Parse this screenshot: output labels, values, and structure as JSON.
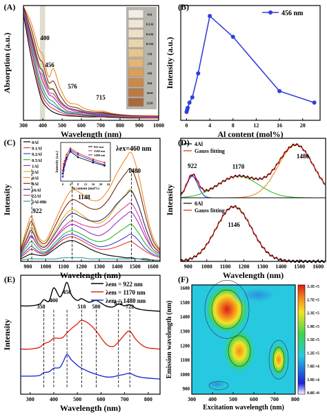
{
  "panels": {
    "a": {
      "letter": "(A)",
      "ylabel": "Absorption (a.u.)",
      "xlabel": "Wavelength (nm)",
      "xticks": [
        "300",
        "400",
        "500",
        "600",
        "700",
        "800",
        "900",
        "1000"
      ],
      "peaks": [
        "400",
        "456",
        "576",
        "715"
      ],
      "swatches": [
        "0Al",
        "0.1Al",
        "0.2Al",
        "0.5Al",
        "1Al",
        "2Al",
        "4Al",
        "8Al",
        "16Al",
        "22Al"
      ]
    },
    "b": {
      "letter": "(B)",
      "ylabel": "Intensity (a.u.)",
      "xlabel": "Al content (mol%)",
      "xticks": [
        "0",
        "4",
        "8",
        "12",
        "16",
        "20"
      ],
      "legend": "456 nm"
    },
    "c": {
      "letter": "(C)",
      "ylabel": "Intensity",
      "xlabel": "Wavelength (nm)",
      "xticks": [
        "900",
        "1000",
        "1100",
        "1200",
        "1300",
        "1400",
        "1500",
        "1600"
      ],
      "legend": [
        "0Al",
        "0.1Al",
        "0.2Al",
        "0.5Al",
        "1Al",
        "2Al",
        "4Al",
        "8Al",
        "16Al",
        "22Al",
        "2Al-0Bi"
      ],
      "excitation": "λex=460 nm",
      "peaks": [
        "922",
        "1148",
        "1480"
      ],
      "inset": {
        "ylabel": "Intensity (a.u.)",
        "xlabel": "Al content (mol%)",
        "xticks": [
          "0",
          "4",
          "8",
          "12",
          "16",
          "20",
          "24"
        ],
        "legend": [
          "922 nm",
          "1148 nm",
          "1480 nm"
        ]
      }
    },
    "d": {
      "letter": "(D)",
      "ylabel": "Intensity",
      "xlabel": "Wavelength (nm)",
      "xticks": [
        "900",
        "1000",
        "1100",
        "1200",
        "1300",
        "1400",
        "1500",
        "1600"
      ],
      "top_legend": [
        "4Al",
        "Gauss fitting"
      ],
      "bottom_legend": [
        "0Al",
        "Gauss fitting"
      ],
      "top_peaks": [
        "922",
        "1170",
        "1480"
      ],
      "bottom_peak": "1146"
    },
    "e": {
      "letter": "(E)",
      "ylabel": "Intensity",
      "xlabel": "Wavelength (nm)",
      "xticks": [
        "300",
        "400",
        "500",
        "600",
        "700",
        "800"
      ],
      "legend": [
        "λem = 922 nm",
        "λem = 1170 nm",
        "λem = 1480 nm"
      ],
      "peaks": [
        "358",
        "400",
        "456",
        "518",
        "580",
        "674",
        "722"
      ]
    },
    "f": {
      "letter": "(F)",
      "ylabel": "Emission wavelength (nm)",
      "xlabel": "Excitation wavelength (nm)",
      "xticks": [
        "300",
        "400",
        "500",
        "600",
        "700",
        "800"
      ],
      "yticks": [
        "900",
        "1000",
        "1100",
        "1200",
        "1300",
        "1400",
        "1500",
        "1600"
      ],
      "colorbar": [
        "3.1E+5",
        "2.7E+5",
        "2.3E+5",
        "1.9E+5",
        "1.5E+5",
        "1.2E+5",
        "7.8E+4",
        "3.9E+4",
        "0.0E+0"
      ]
    }
  },
  "colors": {
    "series": [
      "#000000",
      "#e8392e",
      "#3b46e0",
      "#2ab62a",
      "#9b2fc8",
      "#e2b514",
      "#f08a1f",
      "#7b2a12",
      "#2c2c80",
      "#d63c8e",
      "#2fa19b"
    ],
    "panel_b": "#2f3fd9",
    "em": [
      "#000000",
      "#e0251c",
      "#2433d6"
    ]
  },
  "chart_data": [
    {
      "panel": "A",
      "type": "line",
      "title": "",
      "xlabel": "Wavelength (nm)",
      "ylabel": "Absorption (a.u.)",
      "xlim": [
        300,
        1000
      ],
      "ylim": [
        0,
        1
      ],
      "x": [
        300,
        340,
        380,
        400,
        430,
        456,
        490,
        530,
        576,
        620,
        680,
        715,
        760,
        850,
        1000
      ],
      "series": [
        {
          "name": "0Al",
          "values": [
            0.92,
            0.55,
            0.26,
            0.16,
            0.1,
            0.07,
            0.05,
            0.04,
            0.035,
            0.03,
            0.03,
            0.03,
            0.025,
            0.02,
            0.02
          ]
        },
        {
          "name": "0.1Al",
          "values": [
            0.94,
            0.6,
            0.3,
            0.2,
            0.13,
            0.1,
            0.07,
            0.05,
            0.045,
            0.04,
            0.035,
            0.035,
            0.03,
            0.025,
            0.02
          ]
        },
        {
          "name": "0.2Al",
          "values": [
            0.95,
            0.64,
            0.34,
            0.24,
            0.16,
            0.13,
            0.09,
            0.06,
            0.055,
            0.045,
            0.04,
            0.04,
            0.035,
            0.03,
            0.025
          ]
        },
        {
          "name": "0.5Al",
          "values": [
            0.96,
            0.68,
            0.38,
            0.28,
            0.19,
            0.16,
            0.1,
            0.07,
            0.06,
            0.05,
            0.045,
            0.045,
            0.04,
            0.03,
            0.03
          ]
        },
        {
          "name": "1Al",
          "values": [
            0.97,
            0.72,
            0.44,
            0.34,
            0.23,
            0.2,
            0.13,
            0.08,
            0.07,
            0.06,
            0.05,
            0.05,
            0.045,
            0.035,
            0.03
          ]
        },
        {
          "name": "2Al",
          "values": [
            0.98,
            0.76,
            0.5,
            0.42,
            0.3,
            0.26,
            0.16,
            0.1,
            0.09,
            0.07,
            0.06,
            0.065,
            0.05,
            0.04,
            0.035
          ]
        },
        {
          "name": "4Al",
          "values": [
            0.99,
            0.85,
            0.62,
            0.57,
            0.38,
            0.45,
            0.28,
            0.16,
            0.14,
            0.1,
            0.08,
            0.08,
            0.06,
            0.045,
            0.04
          ]
        },
        {
          "name": "8Al",
          "values": [
            0.99,
            0.8,
            0.55,
            0.5,
            0.33,
            0.34,
            0.22,
            0.13,
            0.11,
            0.08,
            0.07,
            0.07,
            0.055,
            0.04,
            0.035
          ]
        },
        {
          "name": "16Al",
          "values": [
            0.98,
            0.74,
            0.48,
            0.43,
            0.28,
            0.27,
            0.17,
            0.11,
            0.09,
            0.07,
            0.06,
            0.06,
            0.05,
            0.04,
            0.03
          ]
        },
        {
          "name": "22Al",
          "values": [
            0.97,
            0.7,
            0.44,
            0.39,
            0.25,
            0.23,
            0.15,
            0.1,
            0.08,
            0.065,
            0.055,
            0.055,
            0.045,
            0.035,
            0.03
          ]
        }
      ]
    },
    {
      "panel": "B",
      "type": "line",
      "title": "",
      "xlabel": "Al content (mol%)",
      "ylabel": "Intensity (a.u.)",
      "x": [
        0,
        0.1,
        0.2,
        0.5,
        1,
        2,
        4,
        8,
        16,
        22
      ],
      "xlim": [
        -1,
        23
      ],
      "ylim": [
        0,
        1.1
      ],
      "series": [
        {
          "name": "456 nm",
          "values": [
            0.08,
            0.1,
            0.12,
            0.17,
            0.22,
            0.45,
            1.0,
            0.8,
            0.28,
            0.17
          ]
        }
      ]
    },
    {
      "panel": "C",
      "type": "line",
      "title": "",
      "xlabel": "Wavelength (nm)",
      "ylabel": "Intensity",
      "xlim": [
        860,
        1640
      ],
      "ylim": [
        0,
        1
      ],
      "x": [
        860,
        900,
        922,
        960,
        1000,
        1050,
        1100,
        1148,
        1200,
        1250,
        1300,
        1350,
        1400,
        1450,
        1480,
        1520,
        1560,
        1600,
        1640
      ],
      "series": [
        {
          "name": "0Al",
          "values": [
            0.02,
            0.05,
            0.06,
            0.05,
            0.05,
            0.1,
            0.15,
            0.17,
            0.14,
            0.1,
            0.07,
            0.05,
            0.04,
            0.03,
            0.03,
            0.02,
            0.02,
            0.01,
            0.01
          ]
        },
        {
          "name": "0.1Al",
          "values": [
            0.03,
            0.08,
            0.1,
            0.07,
            0.06,
            0.12,
            0.18,
            0.2,
            0.17,
            0.13,
            0.1,
            0.1,
            0.12,
            0.15,
            0.16,
            0.12,
            0.08,
            0.05,
            0.03
          ]
        },
        {
          "name": "0.2Al",
          "values": [
            0.04,
            0.1,
            0.12,
            0.08,
            0.07,
            0.13,
            0.2,
            0.22,
            0.19,
            0.15,
            0.12,
            0.13,
            0.16,
            0.2,
            0.22,
            0.17,
            0.1,
            0.06,
            0.04
          ]
        },
        {
          "name": "0.5Al",
          "values": [
            0.05,
            0.13,
            0.16,
            0.1,
            0.08,
            0.15,
            0.22,
            0.25,
            0.22,
            0.18,
            0.16,
            0.18,
            0.23,
            0.28,
            0.3,
            0.23,
            0.14,
            0.08,
            0.05
          ]
        },
        {
          "name": "1Al",
          "values": [
            0.06,
            0.16,
            0.2,
            0.12,
            0.1,
            0.18,
            0.26,
            0.3,
            0.27,
            0.23,
            0.21,
            0.25,
            0.32,
            0.38,
            0.4,
            0.31,
            0.19,
            0.1,
            0.06
          ]
        },
        {
          "name": "2Al",
          "values": [
            0.08,
            0.22,
            0.28,
            0.16,
            0.13,
            0.24,
            0.36,
            0.42,
            0.38,
            0.33,
            0.31,
            0.36,
            0.46,
            0.55,
            0.58,
            0.45,
            0.27,
            0.14,
            0.08
          ]
        },
        {
          "name": "4Al",
          "values": [
            0.1,
            0.3,
            0.36,
            0.2,
            0.17,
            0.32,
            0.48,
            0.58,
            0.55,
            0.5,
            0.5,
            0.58,
            0.72,
            0.84,
            0.88,
            0.7,
            0.42,
            0.2,
            0.1
          ]
        },
        {
          "name": "8Al",
          "values": [
            0.09,
            0.26,
            0.32,
            0.18,
            0.15,
            0.28,
            0.42,
            0.5,
            0.47,
            0.43,
            0.43,
            0.5,
            0.62,
            0.72,
            0.75,
            0.6,
            0.36,
            0.17,
            0.09
          ]
        },
        {
          "name": "16Al",
          "values": [
            0.07,
            0.2,
            0.25,
            0.14,
            0.12,
            0.22,
            0.33,
            0.39,
            0.36,
            0.33,
            0.33,
            0.38,
            0.47,
            0.54,
            0.57,
            0.45,
            0.27,
            0.13,
            0.07
          ]
        },
        {
          "name": "22Al",
          "values": [
            0.06,
            0.17,
            0.21,
            0.12,
            0.1,
            0.19,
            0.28,
            0.33,
            0.3,
            0.28,
            0.28,
            0.32,
            0.39,
            0.45,
            0.47,
            0.37,
            0.22,
            0.1,
            0.06
          ]
        },
        {
          "name": "2Al-0Bi",
          "values": [
            0.01,
            0.02,
            0.02,
            0.02,
            0.02,
            0.02,
            0.03,
            0.03,
            0.03,
            0.02,
            0.02,
            0.02,
            0.02,
            0.02,
            0.02,
            0.02,
            0.01,
            0.01,
            0.01
          ]
        }
      ]
    },
    {
      "panel": "C-inset",
      "type": "line",
      "xlabel": "Al content (mol%)",
      "ylabel": "Intensity (a.u.)",
      "x": [
        0,
        0.5,
        1,
        2,
        4,
        8,
        16,
        22
      ],
      "xlim": [
        0,
        24
      ],
      "series": [
        {
          "name": "922 nm",
          "values": [
            0.2,
            0.4,
            0.5,
            0.7,
            0.9,
            0.72,
            0.55,
            0.45
          ]
        },
        {
          "name": "1148 nm",
          "values": [
            0.3,
            0.5,
            0.6,
            0.8,
            1.0,
            0.85,
            0.65,
            0.55
          ]
        },
        {
          "name": "1480 nm",
          "values": [
            0.1,
            0.3,
            0.45,
            0.65,
            0.95,
            0.8,
            0.6,
            0.48
          ]
        }
      ]
    },
    {
      "panel": "D-top",
      "type": "line",
      "xlabel": "Wavelength (nm)",
      "ylabel": "Intensity",
      "xlim": [
        860,
        1640
      ],
      "ylim": [
        0,
        1
      ],
      "gauss_components": [
        {
          "name": "922",
          "center": 922,
          "amplitude": 0.38,
          "width": 30
        },
        {
          "name": "1170",
          "center": 1170,
          "amplitude": 0.38,
          "width": 110
        },
        {
          "name": "1480",
          "center": 1480,
          "amplitude": 0.93,
          "width": 95
        }
      ],
      "series": [
        {
          "name": "4Al"
        },
        {
          "name": "Gauss fitting"
        }
      ]
    },
    {
      "panel": "D-bottom",
      "type": "line",
      "xlabel": "Wavelength (nm)",
      "ylabel": "Intensity",
      "xlim": [
        860,
        1640
      ],
      "ylim": [
        0,
        1
      ],
      "gauss_components": [
        {
          "name": "1146",
          "center": 1146,
          "amplitude": 0.9,
          "width": 95
        }
      ],
      "series": [
        {
          "name": "0Al"
        },
        {
          "name": "Gauss fitting"
        }
      ]
    },
    {
      "panel": "E",
      "type": "line",
      "xlabel": "Wavelength (nm)",
      "ylabel": "Intensity",
      "xlim": [
        260,
        850
      ],
      "ylim": [
        0,
        3.3
      ],
      "x": [
        260,
        300,
        340,
        358,
        380,
        400,
        425,
        440,
        456,
        475,
        500,
        518,
        550,
        580,
        620,
        650,
        674,
        700,
        722,
        750,
        790,
        850
      ],
      "series": [
        {
          "name": "λem = 922 nm",
          "values": [
            2.45,
            2.45,
            2.5,
            2.62,
            2.58,
            2.95,
            2.7,
            2.85,
            3.1,
            2.75,
            2.6,
            2.65,
            2.55,
            2.6,
            2.45,
            2.42,
            2.5,
            2.45,
            2.48,
            2.38,
            2.33,
            2.3
          ]
        },
        {
          "name": "λem = 1170 nm",
          "values": [
            1.25,
            1.25,
            1.3,
            1.4,
            1.45,
            1.55,
            1.55,
            1.58,
            1.7,
            1.82,
            1.95,
            2.05,
            1.95,
            1.75,
            1.4,
            1.32,
            1.45,
            1.65,
            1.75,
            1.5,
            1.3,
            1.25
          ]
        },
        {
          "name": "λem = 1480 nm",
          "values": [
            0.5,
            0.5,
            0.52,
            0.6,
            0.62,
            0.72,
            0.74,
            0.9,
            1.1,
            0.95,
            0.8,
            0.72,
            0.62,
            0.55,
            0.48,
            0.48,
            0.52,
            0.55,
            0.58,
            0.5,
            0.45,
            0.42
          ]
        }
      ]
    },
    {
      "panel": "F",
      "type": "heatmap",
      "xlabel": "Excitation wavelength (nm)",
      "ylabel": "Emission wavelength (nm)",
      "xlim": [
        300,
        800
      ],
      "ylim": [
        860,
        1620
      ],
      "zlim": [
        0,
        310000
      ],
      "blobs": [
        {
          "x": 470,
          "y": 1450,
          "z": 310000
        },
        {
          "x": 530,
          "y": 1150,
          "z": 230000
        },
        {
          "x": 720,
          "y": 1100,
          "z": 140000
        },
        {
          "x": 400,
          "y": 920,
          "z": 80000
        },
        {
          "x": 460,
          "y": 920,
          "z": 100000
        }
      ]
    }
  ]
}
